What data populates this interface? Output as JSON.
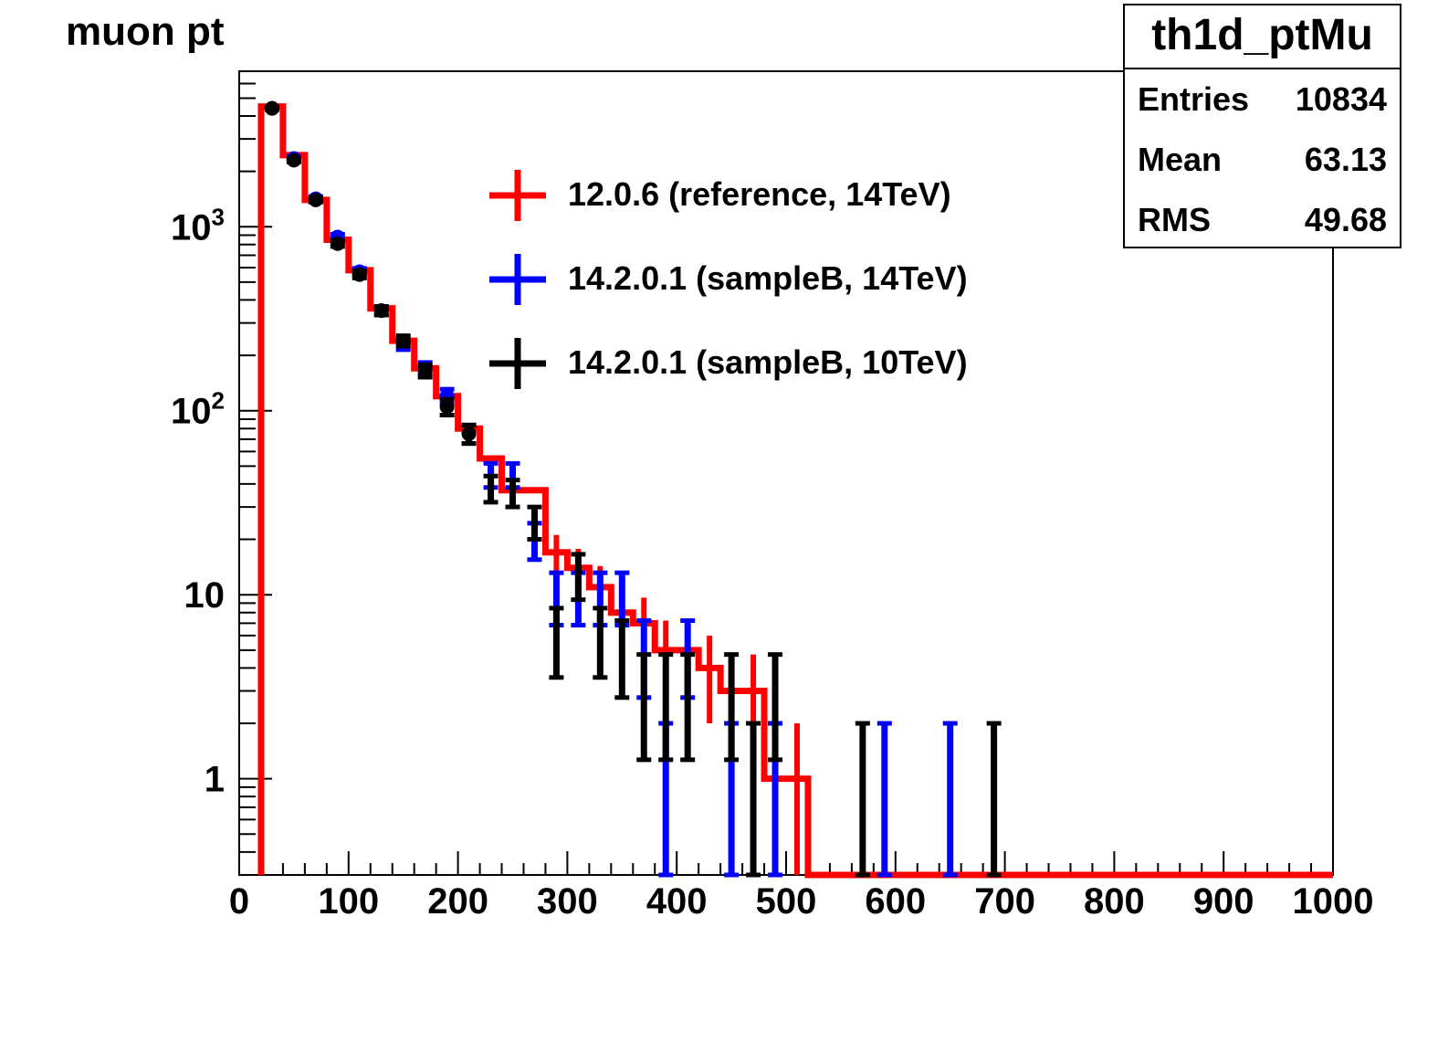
{
  "chart_data": {
    "type": "histogram",
    "title": "muon pt",
    "xlabel": "",
    "ylabel": "",
    "xlim": [
      0,
      1000
    ],
    "ylim": [
      0.3,
      7000
    ],
    "yscale": "log",
    "x_ticks": [
      "0",
      "100",
      "200",
      "300",
      "400",
      "500",
      "600",
      "700",
      "800",
      "900",
      "1000"
    ],
    "y_ticks": [
      {
        "value": 1,
        "label": "1"
      },
      {
        "value": 10,
        "label": "10"
      },
      {
        "value": 100,
        "label": "10",
        "sup": "2"
      },
      {
        "value": 1000,
        "label": "10",
        "sup": "3"
      }
    ],
    "bin_width": 20,
    "bin_centers": [
      30,
      50,
      70,
      90,
      110,
      130,
      150,
      170,
      190,
      210,
      230,
      250,
      270,
      290,
      310,
      330,
      350,
      370,
      390,
      410,
      430,
      450,
      470,
      490,
      510
    ],
    "series": [
      {
        "name": "12.0.6 (reference, 14TeV)",
        "color": "#ff0000",
        "style": "histogram",
        "values": [
          4500,
          2450,
          1400,
          850,
          580,
          360,
          240,
          170,
          120,
          80,
          55,
          37,
          37,
          17,
          14,
          11,
          8,
          7,
          5,
          5,
          4,
          3,
          3,
          1,
          1
        ]
      },
      {
        "name": "14.2.0.1 (sampleB, 14TeV)",
        "color": "#0000ff",
        "style": "errorbar",
        "values": [
          4400,
          2350,
          1420,
          880,
          570,
          350,
          230,
          170,
          120,
          75,
          45,
          45,
          20,
          10,
          10,
          10,
          10,
          5,
          1,
          5,
          0,
          1,
          0,
          1,
          0
        ],
        "extra": [
          {
            "x": 590,
            "y": 1
          },
          {
            "x": 650,
            "y": 1
          }
        ]
      },
      {
        "name": "14.2.0.1 (sampleB, 10TeV)",
        "color": "#000000",
        "style": "errorbar",
        "values": [
          4400,
          2300,
          1400,
          810,
          550,
          350,
          240,
          165,
          105,
          75,
          38,
          36,
          25,
          6,
          13,
          6,
          5,
          3,
          3,
          3,
          0,
          3,
          1,
          3,
          0
        ],
        "extra": [
          {
            "x": 570,
            "y": 1
          },
          {
            "x": 690,
            "y": 1
          }
        ]
      }
    ],
    "legend_position": "top-center"
  },
  "stats_box": {
    "title": "th1d_ptMu",
    "rows": [
      {
        "key": "Entries",
        "value": "10834"
      },
      {
        "key": "Mean",
        "value": "63.13"
      },
      {
        "key": "RMS",
        "value": "49.68"
      }
    ]
  }
}
